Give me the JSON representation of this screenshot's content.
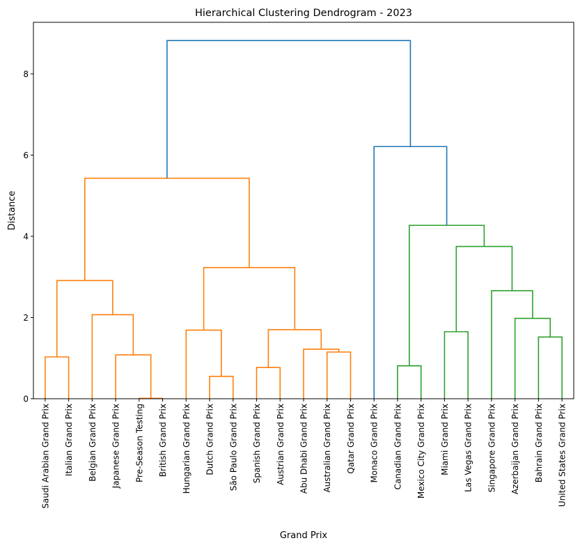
{
  "chart_data": {
    "type": "dendrogram",
    "title": "Hierarchical Clustering Dendrogram - 2023",
    "xlabel": "Grand Prix",
    "ylabel": "Distance",
    "ylim": [
      0,
      9.27
    ],
    "yticks": [
      0,
      2,
      4,
      6,
      8
    ],
    "grid": false,
    "leaves": [
      "Saudi Arabian Grand Prix",
      "Italian Grand Prix",
      "Belgian Grand Prix",
      "Japanese Grand Prix",
      "Pre-Season Testing",
      "British Grand Prix",
      "Hungarian Grand Prix",
      "Dutch Grand Prix",
      "São Paulo Grand Prix",
      "Spanish Grand Prix",
      "Austrian Grand Prix",
      "Abu Dhabi Grand Prix",
      "Australian Grand Prix",
      "Qatar Grand Prix",
      "Monaco Grand Prix",
      "Canadian Grand Prix",
      "Mexico City Grand Prix",
      "Miami Grand Prix",
      "Las Vegas Grand Prix",
      "Singapore Grand Prix",
      "Azerbaijan Grand Prix",
      "Bahrain Grand Prix",
      "United States Grand Prix"
    ],
    "colors": {
      "cluster_1": "#ff7f0e",
      "cluster_2": "#2ca02c",
      "above_threshold": "#1f77b4"
    },
    "merges": [
      {
        "left": "leaf:0",
        "right": "leaf:1",
        "height": 1.03,
        "color": "cluster_1"
      },
      {
        "left": "leaf:4",
        "right": "leaf:5",
        "height": 0.01,
        "color": "cluster_1"
      },
      {
        "left": "leaf:3",
        "right": "m:1",
        "height": 1.08,
        "color": "cluster_1"
      },
      {
        "left": "leaf:2",
        "right": "m:2",
        "height": 2.07,
        "color": "cluster_1"
      },
      {
        "left": "m:0",
        "right": "m:3",
        "height": 2.91,
        "color": "cluster_1"
      },
      {
        "left": "leaf:7",
        "right": "leaf:8",
        "height": 0.55,
        "color": "cluster_1"
      },
      {
        "left": "leaf:6",
        "right": "m:5",
        "height": 1.69,
        "color": "cluster_1"
      },
      {
        "left": "leaf:9",
        "right": "leaf:10",
        "height": 0.77,
        "color": "cluster_1"
      },
      {
        "left": "leaf:12",
        "right": "leaf:13",
        "height": 1.15,
        "color": "cluster_1"
      },
      {
        "left": "leaf:11",
        "right": "m:8",
        "height": 1.22,
        "color": "cluster_1"
      },
      {
        "left": "m:7",
        "right": "m:9",
        "height": 1.7,
        "color": "cluster_1"
      },
      {
        "left": "m:6",
        "right": "m:10",
        "height": 3.23,
        "color": "cluster_1"
      },
      {
        "left": "m:4",
        "right": "m:11",
        "height": 5.43,
        "color": "cluster_1"
      },
      {
        "left": "leaf:15",
        "right": "leaf:16",
        "height": 0.81,
        "color": "cluster_2"
      },
      {
        "left": "leaf:17",
        "right": "leaf:18",
        "height": 1.65,
        "color": "cluster_2"
      },
      {
        "left": "leaf:21",
        "right": "leaf:22",
        "height": 1.52,
        "color": "cluster_2"
      },
      {
        "left": "leaf:20",
        "right": "m:15",
        "height": 1.98,
        "color": "cluster_2"
      },
      {
        "left": "leaf:19",
        "right": "m:16",
        "height": 2.66,
        "color": "cluster_2"
      },
      {
        "left": "m:14",
        "right": "m:17",
        "height": 3.75,
        "color": "cluster_2"
      },
      {
        "left": "m:13",
        "right": "m:18",
        "height": 4.27,
        "color": "cluster_2"
      },
      {
        "left": "leaf:14",
        "right": "m:19",
        "height": 6.21,
        "color": "above_threshold"
      },
      {
        "left": "m:12",
        "right": "m:20",
        "height": 8.82,
        "color": "above_threshold"
      }
    ]
  }
}
